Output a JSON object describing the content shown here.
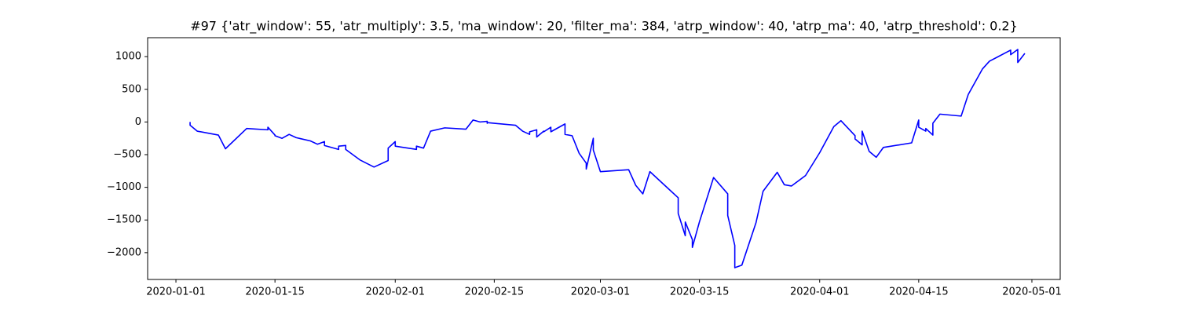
{
  "chart_data": {
    "type": "line",
    "title": "#97 {'atr_window': 55, 'atr_multiply': 3.5, 'ma_window': 20, 'filter_ma': 384, 'atrp_window': 40, 'atrp_ma': 40, 'atrp_threshold': 0.2}",
    "x": [
      "2020-01-03",
      "2020-01-03",
      "2020-01-03",
      "2020-01-04",
      "2020-01-07",
      "2020-01-08",
      "2020-01-11",
      "2020-01-14",
      "2020-01-14",
      "2020-01-15",
      "2020-01-15",
      "2020-01-16",
      "2020-01-17",
      "2020-01-18",
      "2020-01-20",
      "2020-01-21",
      "2020-01-22",
      "2020-01-22",
      "2020-01-24",
      "2020-01-24",
      "2020-01-25",
      "2020-01-25",
      "2020-01-27",
      "2020-01-29",
      "2020-01-31",
      "2020-01-31",
      "2020-02-01",
      "2020-02-01",
      "2020-02-04",
      "2020-02-04",
      "2020-02-05",
      "2020-02-06",
      "2020-02-08",
      "2020-02-11",
      "2020-02-12",
      "2020-02-13",
      "2020-02-14",
      "2020-02-14",
      "2020-02-14",
      "2020-02-18",
      "2020-02-19",
      "2020-02-20",
      "2020-02-20",
      "2020-02-21",
      "2020-02-21",
      "2020-02-22",
      "2020-02-22",
      "2020-02-23",
      "2020-02-23",
      "2020-02-25",
      "2020-02-25",
      "2020-02-26",
      "2020-02-27",
      "2020-02-28",
      "2020-02-28",
      "2020-02-29",
      "2020-02-29",
      "2020-03-01",
      "2020-03-05",
      "2020-03-06",
      "2020-03-07",
      "2020-03-08",
      "2020-03-11",
      "2020-03-12",
      "2020-03-12",
      "2020-03-13",
      "2020-03-13",
      "2020-03-14",
      "2020-03-14",
      "2020-03-15",
      "2020-03-17",
      "2020-03-19",
      "2020-03-19",
      "2020-03-20",
      "2020-03-20",
      "2020-03-21",
      "2020-03-23",
      "2020-03-24",
      "2020-03-24",
      "2020-03-26",
      "2020-03-27",
      "2020-03-28",
      "2020-03-30",
      "2020-04-01",
      "2020-04-03",
      "2020-04-04",
      "2020-04-06",
      "2020-04-06",
      "2020-04-07",
      "2020-04-07",
      "2020-04-08",
      "2020-04-09",
      "2020-04-10",
      "2020-04-14",
      "2020-04-15",
      "2020-04-15",
      "2020-04-16",
      "2020-04-16",
      "2020-04-17",
      "2020-04-17",
      "2020-04-18",
      "2020-04-21",
      "2020-04-22",
      "2020-04-24",
      "2020-04-25",
      "2020-04-28",
      "2020-04-28",
      "2020-04-29",
      "2020-04-29",
      "2020-04-30"
    ],
    "series": [
      {
        "color": "#0000ff",
        "values": [
          0,
          -30,
          -50,
          -140,
          -200,
          -410,
          -100,
          -120,
          -80,
          -200,
          -210,
          -250,
          -190,
          -240,
          -290,
          -340,
          -300,
          -360,
          -420,
          -370,
          -360,
          -420,
          -580,
          -690,
          -590,
          -400,
          -300,
          -370,
          -420,
          -370,
          -400,
          -140,
          -90,
          -110,
          30,
          0,
          10,
          -20,
          -10,
          -50,
          -140,
          -190,
          -150,
          -120,
          -230,
          -140,
          -150,
          -80,
          -150,
          -30,
          -190,
          -210,
          -480,
          -630,
          -720,
          -250,
          -430,
          -760,
          -730,
          -970,
          -1100,
          -760,
          -1060,
          -1160,
          -1400,
          -1740,
          -1530,
          -1800,
          -1920,
          -1530,
          -850,
          -1100,
          -1430,
          -1890,
          -2230,
          -2190,
          -1540,
          -1060,
          -1060,
          -770,
          -960,
          -980,
          -820,
          -470,
          -70,
          20,
          -210,
          -260,
          -350,
          -140,
          -450,
          -540,
          -390,
          -320,
          30,
          -80,
          -140,
          -100,
          -200,
          -20,
          120,
          90,
          420,
          810,
          930,
          1100,
          1030,
          1110,
          910,
          1050
        ]
      }
    ],
    "xlim": [
      "2019-12-28",
      "2020-05-05"
    ],
    "xticks": [
      "2020-01-01",
      "2020-01-15",
      "2020-02-01",
      "2020-02-15",
      "2020-03-01",
      "2020-03-15",
      "2020-04-01",
      "2020-04-15",
      "2020-05-01"
    ],
    "ylim": [
      -2410,
      1290
    ],
    "yticks": [
      {
        "value": -2000,
        "label": "−2000"
      },
      {
        "value": -1500,
        "label": "−1500"
      },
      {
        "value": -1000,
        "label": "−1000"
      },
      {
        "value": -500,
        "label": "−500"
      },
      0,
      500,
      1000
    ]
  }
}
